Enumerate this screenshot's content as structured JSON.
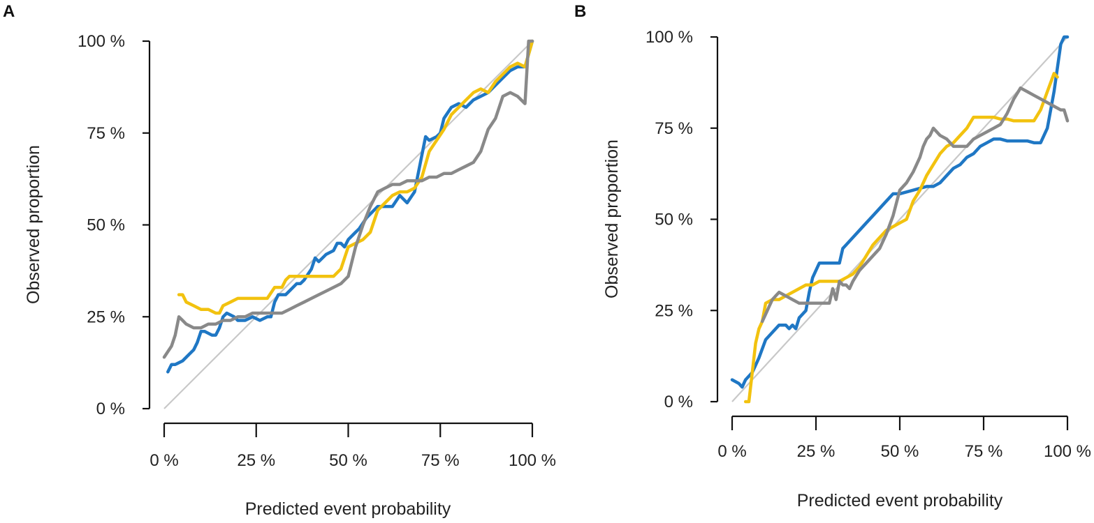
{
  "chart_data": [
    {
      "panel": "A",
      "type": "line",
      "xlabel": "Predicted event probability",
      "ylabel": "Observed proportion",
      "xlim": [
        0,
        100
      ],
      "ylim": [
        0,
        100
      ],
      "x_ticks": [
        "0 %",
        "25 %",
        "50 %",
        "75 %",
        "100 %"
      ],
      "y_ticks": [
        "0 %",
        "25 %",
        "50 %",
        "75 %",
        "100 %"
      ],
      "tick_values": [
        0,
        25,
        50,
        75,
        100
      ],
      "reference_line": {
        "x": [
          0,
          100
        ],
        "y": [
          0,
          100
        ],
        "color": "#c8c8c8"
      },
      "series": [
        {
          "name": "blue",
          "color": "#1f77c4",
          "x": [
            1,
            2,
            3,
            5,
            7,
            8,
            9,
            10,
            11,
            13,
            14,
            15,
            16,
            17,
            19,
            20,
            22,
            24,
            26,
            28,
            29,
            30,
            31,
            33,
            34,
            36,
            37,
            38,
            40,
            41,
            42,
            44,
            46,
            47,
            48,
            49,
            50,
            52,
            53,
            55,
            57,
            58,
            60,
            62,
            64,
            66,
            68,
            70,
            71,
            72,
            74,
            75,
            76,
            78,
            80,
            82,
            84,
            86,
            88,
            90,
            92,
            94,
            96,
            98,
            100
          ],
          "y": [
            10,
            12,
            12,
            13,
            15,
            16,
            18,
            21,
            21,
            20,
            20,
            22,
            25,
            26,
            25,
            24,
            24,
            25,
            24,
            25,
            25,
            29,
            31,
            31,
            32,
            34,
            34,
            35,
            38,
            41,
            40,
            42,
            43,
            45,
            45,
            44,
            46,
            48,
            49,
            52,
            54,
            55,
            55,
            55,
            58,
            56,
            59,
            69,
            74,
            73,
            74,
            75,
            79,
            82,
            83,
            82,
            84,
            85,
            86,
            88,
            90,
            92,
            93,
            93,
            100
          ]
        },
        {
          "name": "yellow",
          "color": "#f2c20f",
          "x": [
            4,
            5,
            6,
            8,
            10,
            12,
            14,
            15,
            16,
            18,
            20,
            22,
            24,
            26,
            28,
            30,
            32,
            33,
            34,
            36,
            38,
            40,
            42,
            44,
            46,
            48,
            50,
            52,
            54,
            56,
            58,
            60,
            62,
            64,
            66,
            68,
            70,
            72,
            74,
            76,
            78,
            80,
            82,
            84,
            86,
            88,
            90,
            92,
            94,
            96,
            98,
            100
          ],
          "y": [
            31,
            31,
            29,
            28,
            27,
            27,
            26,
            26,
            28,
            29,
            30,
            30,
            30,
            30,
            30,
            33,
            33,
            35,
            36,
            36,
            36,
            36,
            36,
            36,
            36,
            38,
            44,
            45,
            46,
            48,
            54,
            56,
            58,
            59,
            59,
            60,
            63,
            70,
            73,
            76,
            80,
            82,
            84,
            86,
            87,
            86,
            89,
            91,
            93,
            94,
            93,
            100
          ]
        },
        {
          "name": "gray",
          "color": "#898989",
          "x": [
            0,
            2,
            3,
            4,
            5,
            6,
            8,
            10,
            12,
            14,
            16,
            18,
            20,
            22,
            24,
            26,
            28,
            30,
            32,
            34,
            36,
            38,
            40,
            42,
            44,
            46,
            48,
            50,
            52,
            54,
            56,
            58,
            60,
            62,
            64,
            66,
            68,
            70,
            72,
            74,
            76,
            78,
            80,
            82,
            84,
            86,
            88,
            90,
            92,
            94,
            96,
            98,
            99,
            100
          ],
          "y": [
            14,
            17,
            20,
            25,
            24,
            23,
            22,
            22,
            23,
            23,
            24,
            24,
            25,
            25,
            26,
            26,
            26,
            26,
            26,
            27,
            28,
            29,
            30,
            31,
            32,
            33,
            34,
            36,
            44,
            50,
            55,
            59,
            60,
            61,
            61,
            62,
            62,
            62,
            63,
            63,
            64,
            64,
            65,
            66,
            67,
            70,
            76,
            79,
            85,
            86,
            85,
            83,
            100,
            100
          ]
        }
      ]
    },
    {
      "panel": "B",
      "type": "line",
      "xlabel": "Predicted event probability",
      "ylabel": "Observed proportion",
      "xlim": [
        0,
        100
      ],
      "ylim": [
        0,
        100
      ],
      "x_ticks": [
        "0 %",
        "25 %",
        "50 %",
        "75 %",
        "100 %"
      ],
      "y_ticks": [
        "0 %",
        "25 %",
        "50 %",
        "75 %",
        "100 %"
      ],
      "tick_values": [
        0,
        25,
        50,
        75,
        100
      ],
      "reference_line": {
        "x": [
          0,
          100
        ],
        "y": [
          0,
          100
        ],
        "color": "#c8c8c8"
      },
      "series": [
        {
          "name": "blue",
          "color": "#1f77c4",
          "x": [
            0,
            2,
            3,
            4,
            6,
            8,
            10,
            12,
            14,
            16,
            17,
            18,
            19,
            20,
            22,
            23,
            24,
            26,
            28,
            30,
            32,
            33,
            34,
            36,
            38,
            40,
            42,
            44,
            46,
            48,
            50,
            52,
            54,
            56,
            58,
            60,
            62,
            64,
            66,
            68,
            70,
            72,
            74,
            76,
            78,
            80,
            82,
            84,
            86,
            88,
            90,
            92,
            94,
            96,
            98,
            99,
            100
          ],
          "y": [
            6,
            5,
            4,
            6,
            8,
            12,
            17,
            19,
            21,
            21,
            20,
            21,
            20,
            23,
            25,
            30,
            34,
            38,
            38,
            38,
            38,
            42,
            43,
            45,
            47,
            49,
            51,
            53,
            55,
            57,
            57,
            57.5,
            58,
            58.5,
            59,
            59,
            60,
            62,
            64,
            65,
            67,
            68,
            70,
            71,
            72,
            72,
            71.5,
            71.5,
            71.5,
            71.5,
            71,
            71,
            75,
            85,
            98,
            100,
            100
          ]
        },
        {
          "name": "yellow",
          "color": "#f2c20f",
          "x": [
            4,
            5,
            6,
            7,
            8,
            9,
            10,
            12,
            14,
            16,
            18,
            20,
            22,
            24,
            26,
            28,
            30,
            32,
            34,
            36,
            38,
            40,
            42,
            44,
            46,
            48,
            50,
            52,
            54,
            56,
            58,
            60,
            62,
            64,
            66,
            68,
            70,
            72,
            74,
            76,
            78,
            80,
            82,
            84,
            86,
            88,
            90,
            92,
            94,
            96,
            97
          ],
          "y": [
            0,
            0,
            8,
            16,
            20,
            22,
            27,
            28,
            28,
            29,
            30,
            31,
            32,
            32,
            33,
            33,
            33,
            33,
            34,
            35,
            37,
            40,
            43,
            45,
            47,
            48,
            49,
            50,
            55,
            58,
            62,
            65,
            68,
            70,
            71,
            73,
            75,
            78,
            78,
            78,
            78,
            77.5,
            77.5,
            77,
            77,
            77,
            77,
            80,
            85,
            90,
            89
          ]
        },
        {
          "name": "gray",
          "color": "#898989",
          "x": [
            9,
            10,
            11,
            12,
            13,
            14,
            16,
            18,
            20,
            22,
            24,
            26,
            28,
            29,
            30,
            31,
            32,
            33,
            34,
            35,
            36,
            38,
            40,
            42,
            44,
            46,
            48,
            50,
            52,
            54,
            56,
            57,
            58,
            59,
            60,
            62,
            64,
            66,
            68,
            70,
            72,
            74,
            76,
            78,
            80,
            82,
            84,
            86,
            88,
            90,
            92,
            94,
            96,
            98,
            99,
            100
          ],
          "y": [
            22,
            24,
            26,
            28,
            29,
            30,
            29,
            28,
            27,
            27,
            27,
            27,
            27,
            27,
            31,
            28,
            33,
            32,
            32,
            31,
            33,
            36,
            38,
            40,
            42,
            46,
            51,
            58,
            60,
            63,
            67,
            70,
            72,
            73,
            75,
            73,
            72,
            70,
            70,
            70,
            72,
            73,
            74,
            75,
            76,
            79,
            83,
            86,
            85,
            84,
            83,
            82,
            81,
            80,
            80,
            77
          ]
        }
      ]
    }
  ]
}
